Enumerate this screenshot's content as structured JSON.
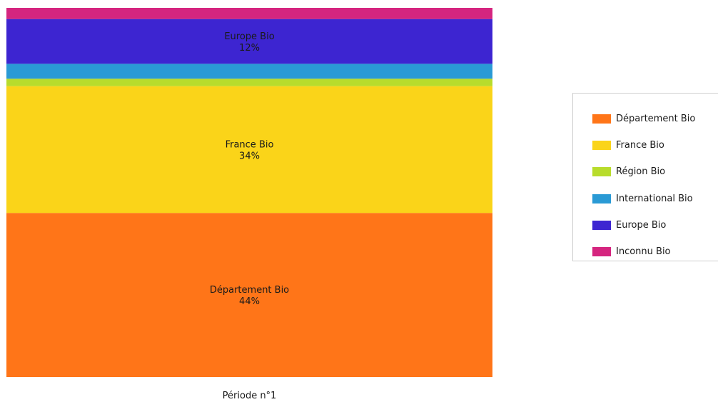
{
  "chart_data": {
    "type": "stacked-bar-100",
    "title": "",
    "categories": [
      "Période n°1"
    ],
    "xlabel": "",
    "ylabel": "",
    "ylim": [
      0,
      100
    ],
    "grid": false,
    "legend_position": "right",
    "series": [
      {
        "name": "Département Bio",
        "color": "#ff7518",
        "values": [
          44
        ],
        "label": "44%"
      },
      {
        "name": "France Bio",
        "color": "#fad419",
        "values": [
          34
        ],
        "label": "34%"
      },
      {
        "name": "Région Bio",
        "color": "#b8dc2c",
        "values": [
          2
        ]
      },
      {
        "name": "International Bio",
        "color": "#2a9ad5",
        "values": [
          4
        ]
      },
      {
        "name": "Europe Bio",
        "color": "#3d25d1",
        "values": [
          12
        ],
        "label": "12%"
      },
      {
        "name": "Inconnu Bio",
        "color": "#d5257f",
        "values": [
          3
        ]
      }
    ]
  }
}
